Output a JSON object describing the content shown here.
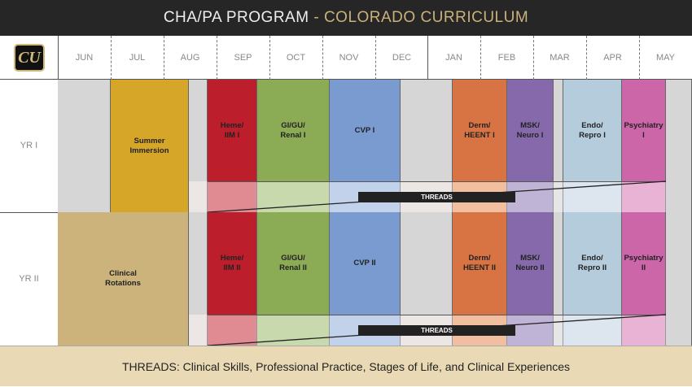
{
  "title": {
    "main": "CHA/PA PROGRAM",
    "sep": " - ",
    "sub": "COLORADO CURRICULUM"
  },
  "logo": "CU",
  "months": [
    "JUN",
    "JUL",
    "AUG",
    "SEP",
    "OCT",
    "NOV",
    "DEC",
    "JAN",
    "FEB",
    "MAR",
    "APR",
    "MAY"
  ],
  "years": [
    {
      "label": "YR I",
      "blocks": [
        "",
        "Summer Immersion",
        "",
        "Heme/ IIM I",
        "GI/GU/ Renal I",
        "CVP I",
        "",
        "Derm/ HEENT I",
        "MSK/ Neuro I",
        "",
        "Endo/ Repro I",
        "Psychiatry I",
        ""
      ],
      "threads": "THREADS"
    },
    {
      "label": "YR II",
      "blocks": [
        "Clinical Rotations",
        "",
        "Heme/ IIM II",
        "GI/GU/ Renal II",
        "CVP II",
        "",
        "Derm/ HEENT II",
        "MSK/ Neuro II",
        "",
        "Endo/ Repro II",
        "Psychiatry II",
        ""
      ],
      "threads": "THREADS"
    }
  ],
  "footer": "THREADS: Clinical Skills, Professional Practice, Stages of Life, and Clinical Experiences",
  "colors": {
    "gray": "#d6d6d6",
    "summer": "#d6a628",
    "clinical": "#cbb37b",
    "heme": "#bd1e2c",
    "gi": "#8bab55",
    "cvp": "#7a9bd0",
    "derm": "#d87343",
    "msk": "#8569ab",
    "endo": "#b5ccdd",
    "psych": "#cd66a8",
    "footer": "#e9dab5",
    "title_bg": "#262626",
    "title_accent": "#c9b27a"
  }
}
